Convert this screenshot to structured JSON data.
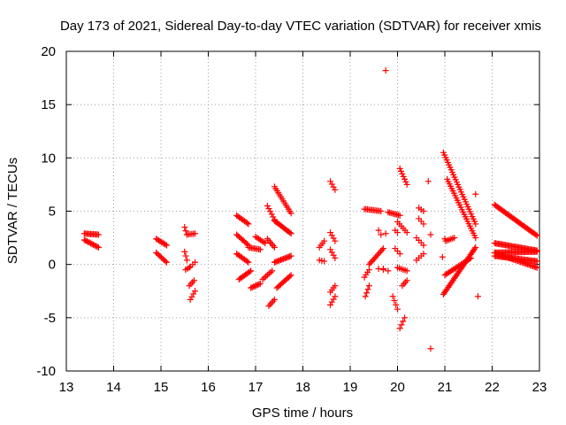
{
  "chart_data": {
    "type": "scatter",
    "title": "Day 173 of 2021, Sidereal Day-to-day VTEC variation (SDTVAR) for receiver xmis",
    "xlabel": "GPS time / hours",
    "ylabel": "SDTVAR / TECUs",
    "xlim": [
      13,
      23
    ],
    "ylim": [
      -10,
      20
    ],
    "xticks": [
      13,
      14,
      15,
      16,
      17,
      18,
      19,
      20,
      21,
      22,
      23
    ],
    "yticks": [
      -10,
      -5,
      0,
      5,
      10,
      15,
      20
    ],
    "grid": true,
    "marker": "+",
    "color": "#ff0000",
    "segments": [
      {
        "x0": 13.38,
        "x1": 13.68,
        "y0": 2.9,
        "y1": 2.8,
        "n": 12
      },
      {
        "x0": 13.38,
        "x1": 13.68,
        "y0": 2.3,
        "y1": 1.6,
        "n": 12
      },
      {
        "x0": 14.9,
        "x1": 15.12,
        "y0": 2.4,
        "y1": 1.8,
        "n": 9
      },
      {
        "x0": 14.9,
        "x1": 15.12,
        "y0": 1.1,
        "y1": 0.2,
        "n": 9
      },
      {
        "x0": 15.5,
        "x1": 15.55,
        "y0": 3.5,
        "y1": 2.8,
        "n": 3
      },
      {
        "x0": 15.5,
        "x1": 15.55,
        "y0": 1.2,
        "y1": 0.4,
        "n": 3
      },
      {
        "x0": 15.55,
        "x1": 15.72,
        "y0": 2.8,
        "y1": 2.9,
        "n": 6
      },
      {
        "x0": 15.52,
        "x1": 15.6,
        "y0": -0.5,
        "y1": -0.3,
        "n": 3
      },
      {
        "x0": 15.6,
        "x1": 15.7,
        "y0": -2.0,
        "y1": -1.5,
        "n": 4
      },
      {
        "x0": 15.62,
        "x1": 15.72,
        "y0": -3.3,
        "y1": -2.5,
        "n": 4
      },
      {
        "x0": 15.62,
        "x1": 15.72,
        "y0": -0.2,
        "y1": 0.2,
        "n": 3
      },
      {
        "x0": 16.6,
        "x1": 16.85,
        "y0": 4.6,
        "y1": 3.8,
        "n": 10
      },
      {
        "x0": 16.6,
        "x1": 16.85,
        "y0": 2.8,
        "y1": 1.8,
        "n": 10
      },
      {
        "x0": 16.6,
        "x1": 16.85,
        "y0": 1.0,
        "y1": 0.2,
        "n": 10
      },
      {
        "x0": 16.65,
        "x1": 16.9,
        "y0": -1.4,
        "y1": -0.6,
        "n": 10
      },
      {
        "x0": 16.85,
        "x1": 17.1,
        "y0": 1.6,
        "y1": 1.4,
        "n": 9
      },
      {
        "x0": 16.9,
        "x1": 17.1,
        "y0": -2.2,
        "y1": -1.8,
        "n": 8
      },
      {
        "x0": 17.0,
        "x1": 17.2,
        "y0": 2.6,
        "y1": 2.0,
        "n": 7
      },
      {
        "x0": 17.15,
        "x1": 17.35,
        "y0": -1.4,
        "y1": -0.6,
        "n": 7
      },
      {
        "x0": 17.25,
        "x1": 17.4,
        "y0": 5.5,
        "y1": 4.2,
        "n": 6
      },
      {
        "x0": 17.25,
        "x1": 17.4,
        "y0": 2.4,
        "y1": 1.6,
        "n": 6
      },
      {
        "x0": 17.28,
        "x1": 17.4,
        "y0": -3.9,
        "y1": -3.3,
        "n": 5
      },
      {
        "x0": 17.4,
        "x1": 17.75,
        "y0": 7.3,
        "y1": 4.8,
        "n": 14
      },
      {
        "x0": 17.4,
        "x1": 17.75,
        "y0": 4.1,
        "y1": 2.9,
        "n": 14
      },
      {
        "x0": 17.4,
        "x1": 17.75,
        "y0": 0.2,
        "y1": 0.8,
        "n": 14
      },
      {
        "x0": 17.45,
        "x1": 17.75,
        "y0": -2.2,
        "y1": -1.0,
        "n": 12
      },
      {
        "x0": 18.35,
        "x1": 18.45,
        "y0": 1.6,
        "y1": 2.2,
        "n": 4
      },
      {
        "x0": 18.35,
        "x1": 18.45,
        "y0": 0.4,
        "y1": 0.3,
        "n": 3
      },
      {
        "x0": 18.58,
        "x1": 18.68,
        "y0": 7.8,
        "y1": 7.0,
        "n": 4
      },
      {
        "x0": 18.58,
        "x1": 18.68,
        "y0": 3.0,
        "y1": 2.2,
        "n": 4
      },
      {
        "x0": 18.58,
        "x1": 18.68,
        "y0": 1.4,
        "y1": 0.6,
        "n": 4
      },
      {
        "x0": 18.58,
        "x1": 18.68,
        "y0": -2.6,
        "y1": -2.0,
        "n": 4
      },
      {
        "x0": 18.58,
        "x1": 18.68,
        "y0": -3.8,
        "y1": -3.0,
        "n": 4
      },
      {
        "x0": 19.3,
        "x1": 19.4,
        "y0": -1.2,
        "y1": -0.5,
        "n": 4
      },
      {
        "x0": 19.32,
        "x1": 19.4,
        "y0": -3.0,
        "y1": -2.0,
        "n": 4
      },
      {
        "x0": 19.4,
        "x1": 19.7,
        "y0": 0.0,
        "y1": 1.5,
        "n": 12
      },
      {
        "x0": 19.3,
        "x1": 19.65,
        "y0": 5.2,
        "y1": 5.0,
        "n": 12
      },
      {
        "x0": 19.6,
        "x1": 19.65,
        "y0": 3.2,
        "y1": 2.8,
        "n": 2
      },
      {
        "x0": 19.6,
        "x1": 19.8,
        "y0": -0.4,
        "y1": -0.6,
        "n": 3
      },
      {
        "x0": 19.8,
        "x1": 20.05,
        "y0": 4.9,
        "y1": 4.6,
        "n": 9
      },
      {
        "x0": 19.9,
        "x1": 20.0,
        "y0": -3.0,
        "y1": -4.2,
        "n": 4
      },
      {
        "x0": 19.95,
        "x1": 20.05,
        "y0": 1.5,
        "y1": 1.0,
        "n": 3
      },
      {
        "x0": 19.95,
        "x1": 20.0,
        "y0": 3.2,
        "y1": 3.0,
        "n": 2
      },
      {
        "x0": 20.0,
        "x1": 20.2,
        "y0": -0.3,
        "y1": -0.6,
        "n": 6
      },
      {
        "x0": 20.05,
        "x1": 20.2,
        "y0": 9.0,
        "y1": 7.5,
        "n": 7
      },
      {
        "x0": 20.0,
        "x1": 20.2,
        "y0": 4.0,
        "y1": 3.0,
        "n": 6
      },
      {
        "x0": 20.1,
        "x1": 20.2,
        "y0": -2.0,
        "y1": -1.5,
        "n": 4
      },
      {
        "x0": 20.05,
        "x1": 20.15,
        "y0": -6.0,
        "y1": -5.0,
        "n": 4
      },
      {
        "x0": 20.45,
        "x1": 20.55,
        "y0": 5.3,
        "y1": 5.0,
        "n": 3
      },
      {
        "x0": 20.45,
        "x1": 20.55,
        "y0": 4.3,
        "y1": 3.8,
        "n": 3
      },
      {
        "x0": 20.4,
        "x1": 20.55,
        "y0": 2.5,
        "y1": 1.8,
        "n": 4
      },
      {
        "x0": 20.4,
        "x1": 20.55,
        "y0": 0.4,
        "y1": 1.0,
        "n": 4
      },
      {
        "x0": 20.97,
        "x1": 21.65,
        "y0": 10.5,
        "y1": 3.8,
        "n": 30
      },
      {
        "x0": 21.05,
        "x1": 21.65,
        "y0": 8.0,
        "y1": 2.5,
        "n": 26
      },
      {
        "x0": 20.97,
        "x1": 21.65,
        "y0": -2.8,
        "y1": 1.6,
        "n": 34
      },
      {
        "x0": 21.0,
        "x1": 21.55,
        "y0": -1.0,
        "y1": 0.6,
        "n": 20
      },
      {
        "x0": 21.02,
        "x1": 21.2,
        "y0": 2.2,
        "y1": 2.5,
        "n": 6
      },
      {
        "x0": 22.05,
        "x1": 22.95,
        "y0": 5.6,
        "y1": 2.7,
        "n": 36
      },
      {
        "x0": 22.05,
        "x1": 22.95,
        "y0": 2.0,
        "y1": 1.3,
        "n": 36
      },
      {
        "x0": 22.05,
        "x1": 22.95,
        "y0": 1.1,
        "y1": 1.2,
        "n": 36
      },
      {
        "x0": 22.05,
        "x1": 22.95,
        "y0": 0.8,
        "y1": 0.3,
        "n": 36
      },
      {
        "x0": 22.1,
        "x1": 22.95,
        "y0": 1.0,
        "y1": -0.3,
        "n": 30
      }
    ],
    "points": [
      [
        19.75,
        18.2
      ],
      [
        20.65,
        7.8
      ],
      [
        20.7,
        -7.9
      ],
      [
        21.65,
        6.6
      ],
      [
        21.7,
        -3.0
      ],
      [
        20.7,
        2.8
      ],
      [
        19.75,
        2.9
      ],
      [
        19.7,
        -0.4
      ],
      [
        20.95,
        0.7
      ],
      [
        21.0,
        2.4
      ]
    ]
  }
}
